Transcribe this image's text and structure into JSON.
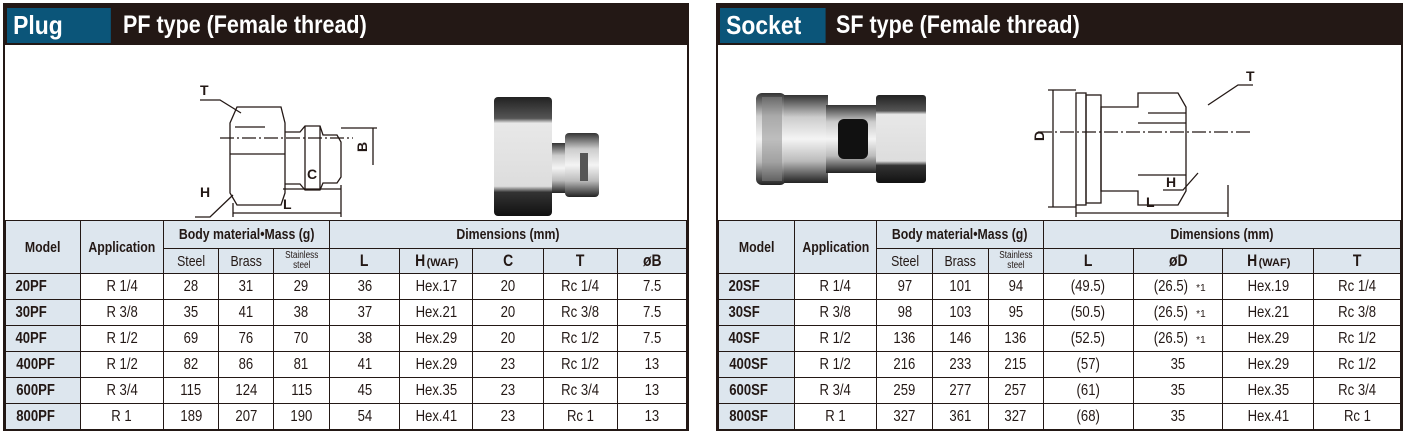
{
  "plug": {
    "tag": "Plug",
    "title": "PF type (Female thread)",
    "diagram_labels": {
      "T": "T",
      "H": "H",
      "C": "C",
      "L": "L",
      "B": "B"
    },
    "headers": {
      "model": "Model",
      "application": "Application",
      "body_group": "Body material•Mass (g)",
      "dims_group": "Dimensions (mm)",
      "materials": [
        "Steel",
        "Brass",
        "Stainless steel"
      ],
      "dims": [
        {
          "main": "L",
          "sub": ""
        },
        {
          "main": "H",
          "sub": "(WAF)"
        },
        {
          "main": "C",
          "sub": ""
        },
        {
          "main": "T",
          "sub": ""
        },
        {
          "main": "øB",
          "sub": ""
        }
      ]
    },
    "rows": [
      [
        "20PF",
        "R 1/4",
        "28",
        "31",
        "29",
        "36",
        "Hex.17",
        "20",
        "Rc 1/4",
        "7.5"
      ],
      [
        "30PF",
        "R 3/8",
        "35",
        "41",
        "38",
        "37",
        "Hex.21",
        "20",
        "Rc 3/8",
        "7.5"
      ],
      [
        "40PF",
        "R 1/2",
        "69",
        "76",
        "70",
        "38",
        "Hex.29",
        "20",
        "Rc 1/2",
        "7.5"
      ],
      [
        "400PF",
        "R 1/2",
        "82",
        "86",
        "81",
        "41",
        "Hex.29",
        "23",
        "Rc 1/2",
        "13"
      ],
      [
        "600PF",
        "R 3/4",
        "115",
        "124",
        "115",
        "45",
        "Hex.35",
        "23",
        "Rc 3/4",
        "13"
      ],
      [
        "800PF",
        "R 1",
        "189",
        "207",
        "190",
        "54",
        "Hex.41",
        "23",
        "Rc 1",
        "13"
      ]
    ]
  },
  "socket": {
    "tag": "Socket",
    "title": "SF type (Female thread)",
    "diagram_labels": {
      "T": "T",
      "D": "D",
      "H": "H",
      "L": "L"
    },
    "headers": {
      "model": "Model",
      "application": "Application",
      "body_group": "Body material•Mass (g)",
      "dims_group": "Dimensions (mm)",
      "materials": [
        "Steel",
        "Brass",
        "Stainless steel"
      ],
      "dims": [
        {
          "main": "L",
          "sub": ""
        },
        {
          "main": "øD",
          "sub": ""
        },
        {
          "main": "H",
          "sub": "(WAF)"
        },
        {
          "main": "T",
          "sub": ""
        }
      ]
    },
    "footnote_mark": "*1",
    "rows": [
      [
        "20SF",
        "R 1/4",
        "97",
        "101",
        "94",
        "(49.5)",
        "(26.5)*1",
        "Hex.19",
        "Rc 1/4"
      ],
      [
        "30SF",
        "R 3/8",
        "98",
        "103",
        "95",
        "(50.5)",
        "(26.5)*1",
        "Hex.21",
        "Rc 3/8"
      ],
      [
        "40SF",
        "R 1/2",
        "136",
        "146",
        "136",
        "(52.5)",
        "(26.5)*1",
        "Hex.29",
        "Rc 1/2"
      ],
      [
        "400SF",
        "R 1/2",
        "216",
        "233",
        "215",
        "(57)",
        "35",
        "Hex.29",
        "Rc 1/2"
      ],
      [
        "600SF",
        "R 3/4",
        "259",
        "277",
        "257",
        "(61)",
        "35",
        "Hex.35",
        "Rc 3/4"
      ],
      [
        "800SF",
        "R 1",
        "327",
        "361",
        "327",
        "(68)",
        "35",
        "Hex.41",
        "Rc 1"
      ]
    ]
  },
  "colors": {
    "title_bar": "#231815",
    "tag_bg": "#0b5579",
    "header_bg": "#dde6ee"
  }
}
